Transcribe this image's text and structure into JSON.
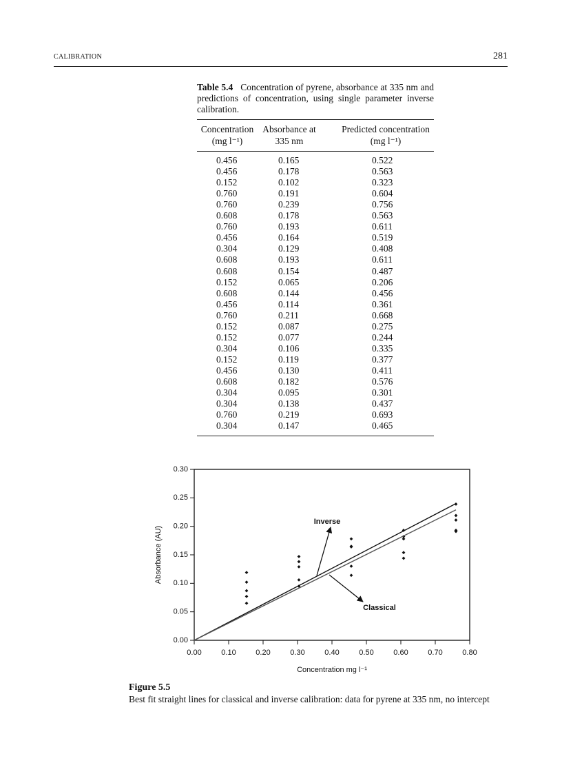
{
  "header": {
    "running_title": "CALIBRATION",
    "page_number": "281"
  },
  "table": {
    "label": "Table 5.4",
    "caption": "Concentration of pyrene, absorbance at 335 nm and predictions of concentration, using single parameter inverse calibration.",
    "columns": [
      [
        "Concentration",
        "(mg l⁻¹)"
      ],
      [
        "Absorbance at",
        "335 nm"
      ],
      [
        "Predicted concentration",
        "(mg l⁻¹)"
      ]
    ],
    "rows": [
      [
        "0.456",
        "0.165",
        "0.522"
      ],
      [
        "0.456",
        "0.178",
        "0.563"
      ],
      [
        "0.152",
        "0.102",
        "0.323"
      ],
      [
        "0.760",
        "0.191",
        "0.604"
      ],
      [
        "0.760",
        "0.239",
        "0.756"
      ],
      [
        "0.608",
        "0.178",
        "0.563"
      ],
      [
        "0.760",
        "0.193",
        "0.611"
      ],
      [
        "0.456",
        "0.164",
        "0.519"
      ],
      [
        "0.304",
        "0.129",
        "0.408"
      ],
      [
        "0.608",
        "0.193",
        "0.611"
      ],
      [
        "0.608",
        "0.154",
        "0.487"
      ],
      [
        "0.152",
        "0.065",
        "0.206"
      ],
      [
        "0.608",
        "0.144",
        "0.456"
      ],
      [
        "0.456",
        "0.114",
        "0.361"
      ],
      [
        "0.760",
        "0.211",
        "0.668"
      ],
      [
        "0.152",
        "0.087",
        "0.275"
      ],
      [
        "0.152",
        "0.077",
        "0.244"
      ],
      [
        "0.304",
        "0.106",
        "0.335"
      ],
      [
        "0.152",
        "0.119",
        "0.377"
      ],
      [
        "0.456",
        "0.130",
        "0.411"
      ],
      [
        "0.608",
        "0.182",
        "0.576"
      ],
      [
        "0.304",
        "0.095",
        "0.301"
      ],
      [
        "0.304",
        "0.138",
        "0.437"
      ],
      [
        "0.760",
        "0.219",
        "0.693"
      ],
      [
        "0.304",
        "0.147",
        "0.465"
      ]
    ]
  },
  "chart_data": {
    "type": "scatter",
    "x_label": "Concentration mg l⁻¹",
    "y_label": "Absorbance (AU)",
    "xlim": [
      0,
      0.8
    ],
    "ylim": [
      0,
      0.3
    ],
    "xticks": [
      {
        "value": 0,
        "label": "0.00"
      },
      {
        "value": 0.1,
        "label": "0.10"
      },
      {
        "value": 0.2,
        "label": "0.20"
      },
      {
        "value": 0.3,
        "label": "0.30"
      },
      {
        "value": 0.4,
        "label": "0.40"
      },
      {
        "value": 0.5,
        "label": "0.50"
      },
      {
        "value": 0.6,
        "label": "0.60"
      },
      {
        "value": 0.7,
        "label": "0.70"
      },
      {
        "value": 0.8,
        "label": "0.80"
      }
    ],
    "yticks": [
      {
        "value": 0,
        "label": "0.00"
      },
      {
        "value": 0.05,
        "label": "0.05"
      },
      {
        "value": 0.1,
        "label": "0.10"
      },
      {
        "value": 0.15,
        "label": "0.15"
      },
      {
        "value": 0.2,
        "label": "0.20"
      },
      {
        "value": 0.25,
        "label": "0.25"
      },
      {
        "value": 0.3,
        "label": "0.30"
      }
    ],
    "series": [
      {
        "type": "scatter",
        "color": "#111111",
        "x": [
          0.456,
          0.456,
          0.152,
          0.76,
          0.76,
          0.608,
          0.76,
          0.456,
          0.304,
          0.608,
          0.608,
          0.152,
          0.608,
          0.456,
          0.76,
          0.152,
          0.152,
          0.304,
          0.152,
          0.456,
          0.608,
          0.304,
          0.304,
          0.76,
          0.304
        ],
        "values": [
          0.165,
          0.178,
          0.102,
          0.191,
          0.239,
          0.178,
          0.193,
          0.164,
          0.129,
          0.193,
          0.154,
          0.065,
          0.144,
          0.114,
          0.211,
          0.087,
          0.077,
          0.106,
          0.119,
          0.13,
          0.182,
          0.095,
          0.138,
          0.219,
          0.147
        ]
      },
      {
        "name": "Inverse",
        "type": "line",
        "color": "#111111",
        "x": [
          0,
          0.76
        ],
        "values": [
          0,
          0.24
        ]
      },
      {
        "name": "Classical",
        "type": "line",
        "color": "#555555",
        "x": [
          0,
          0.76
        ],
        "values": [
          0,
          0.229
        ]
      }
    ]
  },
  "figure": {
    "label": "Figure 5.5",
    "caption": "Best fit straight lines for classical and inverse calibration: data for pyrene at 335 nm, no intercept"
  }
}
